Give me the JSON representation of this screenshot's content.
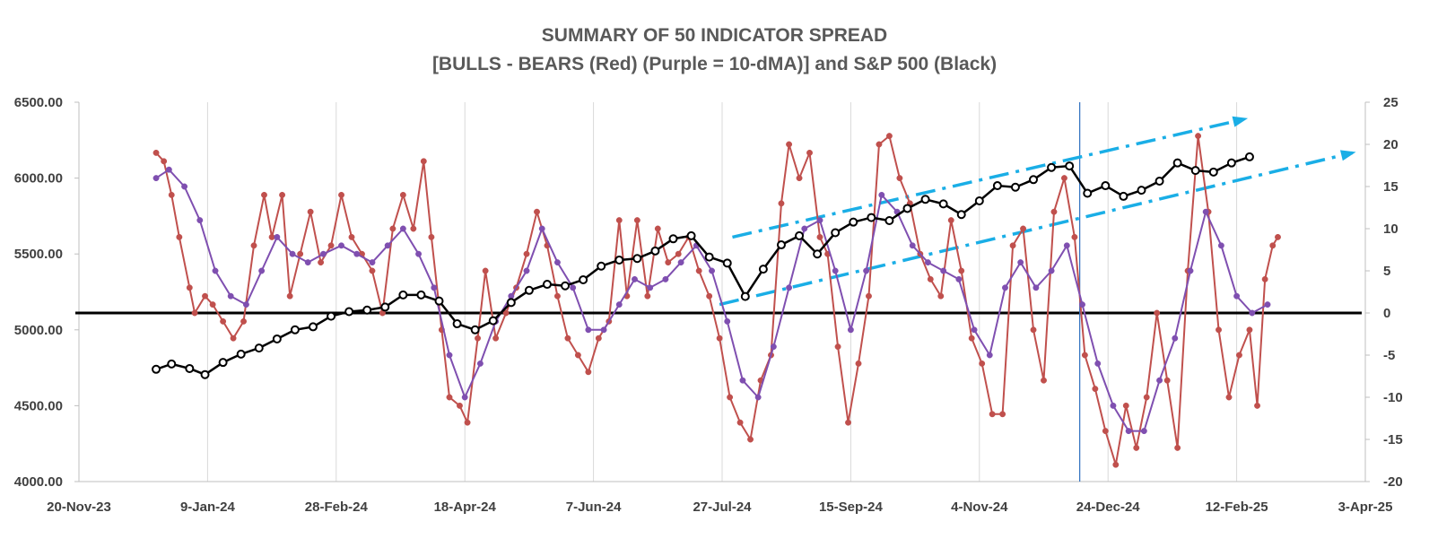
{
  "chart_data": {
    "type": "line",
    "title": "SUMMARY OF 50 INDICATOR SPREAD",
    "subtitle": "[BULLS - BEARS (Red) (Purple = 10-dMA)] and S&P 500 (Black)",
    "x_ticks": [
      "20-Nov-23",
      "9-Jan-24",
      "28-Feb-24",
      "18-Apr-24",
      "7-Jun-24",
      "27-Jul-24",
      "15-Sep-24",
      "4-Nov-24",
      "24-Dec-24",
      "12-Feb-25",
      "3-Apr-25"
    ],
    "xlim": [
      "2023-11-20",
      "2025-04-03"
    ],
    "y_left_ticks": [
      "6500.00",
      "6000.00",
      "5500.00",
      "5000.00",
      "4500.00",
      "4000.00"
    ],
    "y_left_range": [
      4000,
      6500
    ],
    "y_right_ticks": [
      "25",
      "20",
      "15",
      "10",
      "5",
      "0",
      "-5",
      "-10",
      "-15",
      "-20"
    ],
    "y_right_range": [
      -20,
      25
    ],
    "grid": "vertical",
    "colors": {
      "spread": "#c0504d",
      "ma": "#7f4fb0",
      "sp500": "#000000",
      "channel": "#1aaee6",
      "vline": "#2e6fbf",
      "grid": "#d9d9d9"
    },
    "vertical_marker_date": "2024-12-13",
    "series": [
      {
        "name": "S&P 500",
        "axis": "left",
        "marker": "hollow-circle",
        "points": [
          [
            "2023-12-20",
            4740
          ],
          [
            "2023-12-26",
            4775
          ],
          [
            "2024-01-02",
            4745
          ],
          [
            "2024-01-08",
            4705
          ],
          [
            "2024-01-15",
            4785
          ],
          [
            "2024-01-22",
            4840
          ],
          [
            "2024-01-29",
            4880
          ],
          [
            "2024-02-05",
            4940
          ],
          [
            "2024-02-12",
            5000
          ],
          [
            "2024-02-19",
            5020
          ],
          [
            "2024-02-26",
            5090
          ],
          [
            "2024-03-04",
            5120
          ],
          [
            "2024-03-11",
            5130
          ],
          [
            "2024-03-18",
            5150
          ],
          [
            "2024-03-25",
            5230
          ],
          [
            "2024-04-01",
            5230
          ],
          [
            "2024-04-08",
            5190
          ],
          [
            "2024-04-15",
            5040
          ],
          [
            "2024-04-22",
            5000
          ],
          [
            "2024-04-29",
            5060
          ],
          [
            "2024-05-06",
            5180
          ],
          [
            "2024-05-13",
            5260
          ],
          [
            "2024-05-20",
            5300
          ],
          [
            "2024-05-27",
            5290
          ],
          [
            "2024-06-03",
            5330
          ],
          [
            "2024-06-10",
            5420
          ],
          [
            "2024-06-17",
            5460
          ],
          [
            "2024-06-24",
            5470
          ],
          [
            "2024-07-01",
            5520
          ],
          [
            "2024-07-08",
            5600
          ],
          [
            "2024-07-15",
            5620
          ],
          [
            "2024-07-22",
            5480
          ],
          [
            "2024-07-29",
            5440
          ],
          [
            "2024-08-05",
            5220
          ],
          [
            "2024-08-12",
            5400
          ],
          [
            "2024-08-19",
            5560
          ],
          [
            "2024-08-26",
            5620
          ],
          [
            "2024-09-02",
            5500
          ],
          [
            "2024-09-09",
            5640
          ],
          [
            "2024-09-16",
            5710
          ],
          [
            "2024-09-23",
            5740
          ],
          [
            "2024-09-30",
            5720
          ],
          [
            "2024-10-07",
            5800
          ],
          [
            "2024-10-14",
            5860
          ],
          [
            "2024-10-21",
            5830
          ],
          [
            "2024-10-28",
            5760
          ],
          [
            "2024-11-04",
            5850
          ],
          [
            "2024-11-11",
            5950
          ],
          [
            "2024-11-18",
            5940
          ],
          [
            "2024-11-25",
            5990
          ],
          [
            "2024-12-02",
            6070
          ],
          [
            "2024-12-09",
            6080
          ],
          [
            "2024-12-16",
            5900
          ],
          [
            "2024-12-23",
            5950
          ],
          [
            "2024-12-30",
            5880
          ],
          [
            "2025-01-06",
            5920
          ],
          [
            "2025-01-13",
            5980
          ],
          [
            "2025-01-20",
            6100
          ],
          [
            "2025-01-27",
            6050
          ],
          [
            "2025-02-03",
            6040
          ],
          [
            "2025-02-10",
            6100
          ],
          [
            "2025-02-17",
            6140
          ]
        ]
      },
      {
        "name": "Bulls - Bears",
        "axis": "right",
        "marker": "filled-circle",
        "points": [
          [
            "2023-12-20",
            19
          ],
          [
            "2023-12-23",
            18
          ],
          [
            "2023-12-26",
            14
          ],
          [
            "2023-12-29",
            9
          ],
          [
            "2024-01-02",
            3
          ],
          [
            "2024-01-04",
            0
          ],
          [
            "2024-01-08",
            2
          ],
          [
            "2024-01-11",
            1
          ],
          [
            "2024-01-15",
            -1
          ],
          [
            "2024-01-19",
            -3
          ],
          [
            "2024-01-23",
            -1
          ],
          [
            "2024-01-27",
            8
          ],
          [
            "2024-01-31",
            14
          ],
          [
            "2024-02-03",
            9
          ],
          [
            "2024-02-07",
            14
          ],
          [
            "2024-02-10",
            2
          ],
          [
            "2024-02-14",
            7
          ],
          [
            "2024-02-18",
            12
          ],
          [
            "2024-02-22",
            6
          ],
          [
            "2024-02-26",
            8
          ],
          [
            "2024-03-01",
            14
          ],
          [
            "2024-03-05",
            9
          ],
          [
            "2024-03-09",
            7
          ],
          [
            "2024-03-13",
            5
          ],
          [
            "2024-03-17",
            0
          ],
          [
            "2024-03-21",
            10
          ],
          [
            "2024-03-25",
            14
          ],
          [
            "2024-03-29",
            10
          ],
          [
            "2024-04-02",
            18
          ],
          [
            "2024-04-05",
            9
          ],
          [
            "2024-04-09",
            -2
          ],
          [
            "2024-04-12",
            -10
          ],
          [
            "2024-04-16",
            -11
          ],
          [
            "2024-04-19",
            -13
          ],
          [
            "2024-04-23",
            -3
          ],
          [
            "2024-04-26",
            5
          ],
          [
            "2024-04-30",
            -3
          ],
          [
            "2024-05-04",
            0
          ],
          [
            "2024-05-08",
            3
          ],
          [
            "2024-05-12",
            7
          ],
          [
            "2024-05-16",
            12
          ],
          [
            "2024-05-20",
            8
          ],
          [
            "2024-05-24",
            2
          ],
          [
            "2024-05-28",
            -3
          ],
          [
            "2024-06-01",
            -5
          ],
          [
            "2024-06-05",
            -7
          ],
          [
            "2024-06-09",
            -3
          ],
          [
            "2024-06-13",
            -1
          ],
          [
            "2024-06-17",
            11
          ],
          [
            "2024-06-20",
            2
          ],
          [
            "2024-06-24",
            11
          ],
          [
            "2024-06-28",
            2
          ],
          [
            "2024-07-02",
            10
          ],
          [
            "2024-07-06",
            6
          ],
          [
            "2024-07-10",
            7
          ],
          [
            "2024-07-14",
            9
          ],
          [
            "2024-07-18",
            5
          ],
          [
            "2024-07-22",
            2
          ],
          [
            "2024-07-26",
            -3
          ],
          [
            "2024-07-30",
            -10
          ],
          [
            "2024-08-03",
            -13
          ],
          [
            "2024-08-07",
            -15
          ],
          [
            "2024-08-11",
            -8
          ],
          [
            "2024-08-15",
            -5
          ],
          [
            "2024-08-19",
            13
          ],
          [
            "2024-08-22",
            20
          ],
          [
            "2024-08-26",
            16
          ],
          [
            "2024-08-30",
            19
          ],
          [
            "2024-09-03",
            9
          ],
          [
            "2024-09-06",
            7
          ],
          [
            "2024-09-10",
            -4
          ],
          [
            "2024-09-14",
            -13
          ],
          [
            "2024-09-18",
            -6
          ],
          [
            "2024-09-22",
            2
          ],
          [
            "2024-09-26",
            20
          ],
          [
            "2024-09-30",
            21
          ],
          [
            "2024-10-04",
            16
          ],
          [
            "2024-10-08",
            13
          ],
          [
            "2024-10-12",
            7
          ],
          [
            "2024-10-16",
            4
          ],
          [
            "2024-10-20",
            2
          ],
          [
            "2024-10-24",
            11
          ],
          [
            "2024-10-28",
            5
          ],
          [
            "2024-11-01",
            -3
          ],
          [
            "2024-11-05",
            -6
          ],
          [
            "2024-11-09",
            -12
          ],
          [
            "2024-11-13",
            -12
          ],
          [
            "2024-11-17",
            8
          ],
          [
            "2024-11-21",
            10
          ],
          [
            "2024-11-25",
            -2
          ],
          [
            "2024-11-29",
            -8
          ],
          [
            "2024-12-03",
            12
          ],
          [
            "2024-12-07",
            16
          ],
          [
            "2024-12-11",
            9
          ],
          [
            "2024-12-15",
            -5
          ],
          [
            "2024-12-19",
            -9
          ],
          [
            "2024-12-23",
            -14
          ],
          [
            "2024-12-27",
            -18
          ],
          [
            "2024-12-31",
            -11
          ],
          [
            "2025-01-04",
            -16
          ],
          [
            "2025-01-08",
            -10
          ],
          [
            "2025-01-12",
            0
          ],
          [
            "2025-01-16",
            -8
          ],
          [
            "2025-01-20",
            -16
          ],
          [
            "2025-01-24",
            5
          ],
          [
            "2025-01-28",
            21
          ],
          [
            "2025-02-01",
            12
          ],
          [
            "2025-02-05",
            -2
          ],
          [
            "2025-02-09",
            -10
          ],
          [
            "2025-02-13",
            -5
          ],
          [
            "2025-02-17",
            -2
          ],
          [
            "2025-02-20",
            -11
          ],
          [
            "2025-02-23",
            4
          ],
          [
            "2025-02-26",
            8
          ],
          [
            "2025-02-28",
            9
          ]
        ]
      },
      {
        "name": "10-dMA",
        "axis": "right",
        "marker": "filled-circle",
        "points": [
          [
            "2023-12-20",
            16
          ],
          [
            "2023-12-25",
            17
          ],
          [
            "2023-12-31",
            15
          ],
          [
            "2024-01-06",
            11
          ],
          [
            "2024-01-12",
            5
          ],
          [
            "2024-01-18",
            2
          ],
          [
            "2024-01-24",
            1
          ],
          [
            "2024-01-30",
            5
          ],
          [
            "2024-02-05",
            9
          ],
          [
            "2024-02-11",
            7
          ],
          [
            "2024-02-17",
            6
          ],
          [
            "2024-02-23",
            7
          ],
          [
            "2024-03-01",
            8
          ],
          [
            "2024-03-07",
            7
          ],
          [
            "2024-03-13",
            6
          ],
          [
            "2024-03-19",
            8
          ],
          [
            "2024-03-25",
            10
          ],
          [
            "2024-03-31",
            7
          ],
          [
            "2024-04-06",
            3
          ],
          [
            "2024-04-12",
            -5
          ],
          [
            "2024-04-18",
            -10
          ],
          [
            "2024-04-24",
            -6
          ],
          [
            "2024-04-30",
            -1
          ],
          [
            "2024-05-06",
            2
          ],
          [
            "2024-05-12",
            5
          ],
          [
            "2024-05-18",
            10
          ],
          [
            "2024-05-24",
            6
          ],
          [
            "2024-05-30",
            3
          ],
          [
            "2024-06-05",
            -2
          ],
          [
            "2024-06-11",
            -2
          ],
          [
            "2024-06-17",
            1
          ],
          [
            "2024-06-23",
            4
          ],
          [
            "2024-06-29",
            3
          ],
          [
            "2024-07-05",
            4
          ],
          [
            "2024-07-11",
            6
          ],
          [
            "2024-07-17",
            8
          ],
          [
            "2024-07-23",
            5
          ],
          [
            "2024-07-29",
            -1
          ],
          [
            "2024-08-04",
            -8
          ],
          [
            "2024-08-10",
            -10
          ],
          [
            "2024-08-16",
            -4
          ],
          [
            "2024-08-22",
            3
          ],
          [
            "2024-08-28",
            10
          ],
          [
            "2024-09-03",
            11
          ],
          [
            "2024-09-09",
            5
          ],
          [
            "2024-09-15",
            -2
          ],
          [
            "2024-09-21",
            5
          ],
          [
            "2024-09-27",
            14
          ],
          [
            "2024-10-03",
            12
          ],
          [
            "2024-10-09",
            8
          ],
          [
            "2024-10-15",
            6
          ],
          [
            "2024-10-21",
            5
          ],
          [
            "2024-10-27",
            4
          ],
          [
            "2024-11-02",
            -2
          ],
          [
            "2024-11-08",
            -5
          ],
          [
            "2024-11-14",
            3
          ],
          [
            "2024-11-20",
            6
          ],
          [
            "2024-11-26",
            3
          ],
          [
            "2024-12-02",
            5
          ],
          [
            "2024-12-08",
            8
          ],
          [
            "2024-12-14",
            1
          ],
          [
            "2024-12-20",
            -6
          ],
          [
            "2024-12-26",
            -11
          ],
          [
            "2025-01-01",
            -14
          ],
          [
            "2025-01-07",
            -14
          ],
          [
            "2025-01-13",
            -8
          ],
          [
            "2025-01-19",
            -3
          ],
          [
            "2025-01-25",
            5
          ],
          [
            "2025-01-31",
            12
          ],
          [
            "2025-02-06",
            8
          ],
          [
            "2025-02-12",
            2
          ],
          [
            "2025-02-18",
            0
          ],
          [
            "2025-02-24",
            1
          ]
        ]
      }
    ]
  }
}
